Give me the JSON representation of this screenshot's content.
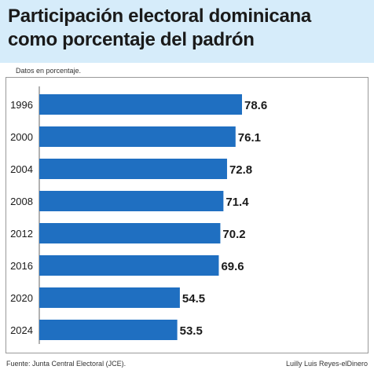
{
  "header": {
    "title_line1": "Participación electoral dominicana",
    "title_line2": "como porcentaje del padrón"
  },
  "note": "Datos en porcentaje.",
  "footer": {
    "source": "Fuente: Junta Central Electoral (JCE).",
    "credit": "Luilly Luis Reyes-elDinero"
  },
  "colors": {
    "bar": "#1f6fc1",
    "header_bg": "#d6ecfa"
  },
  "chart_data": {
    "type": "bar",
    "orientation": "horizontal",
    "categories": [
      "1996",
      "2000",
      "2004",
      "2008",
      "2012",
      "2016",
      "2020",
      "2024"
    ],
    "values": [
      78.6,
      76.1,
      72.8,
      71.4,
      70.2,
      69.6,
      54.5,
      53.5
    ],
    "labels": [
      "78.6",
      "76.1",
      "72.8",
      "71.4",
      "70.2",
      "69.6",
      "54.5",
      "53.5"
    ],
    "title": "Participación electoral dominicana como porcentaje del padrón",
    "xlabel": "",
    "ylabel": "",
    "xlim": [
      0,
      78.6
    ],
    "grid": false,
    "legend": "none"
  }
}
